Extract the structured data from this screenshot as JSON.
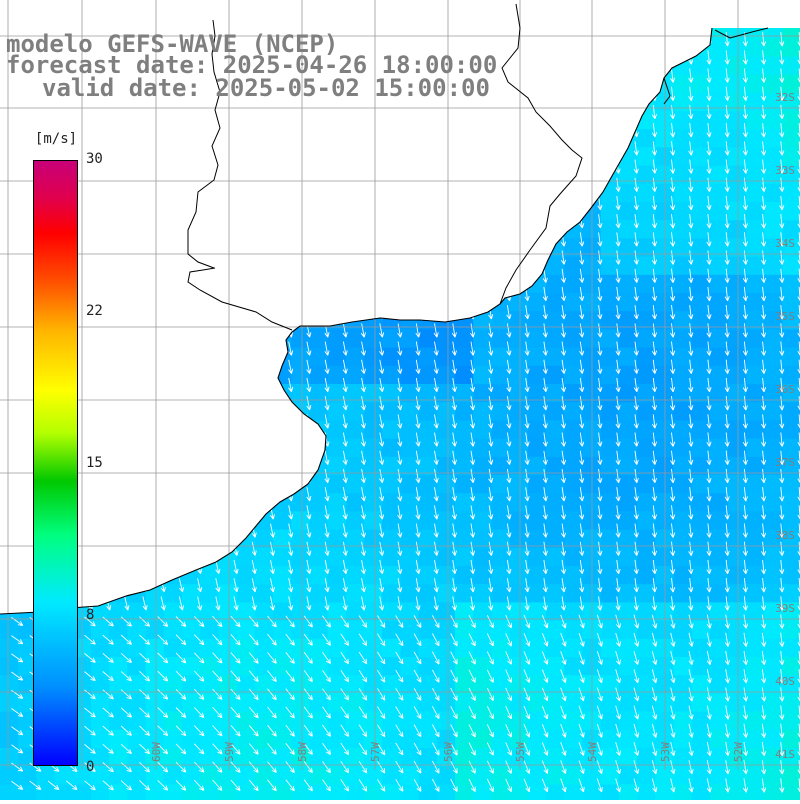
{
  "header": {
    "line1": "modelo GEFS-WAVE (NCEP)",
    "line2": "forecast date: 2025-04-26 18:00:00",
    "line3": "valid date: 2025-05-02 15:00:00"
  },
  "colorbar": {
    "unit": "[m/s]",
    "ticks": [
      "30",
      "22",
      "15",
      "8",
      "0"
    ],
    "colors": [
      "#0000ff",
      "#0090ff",
      "#00eaff",
      "#00ff80",
      "#00c800",
      "#b4ff00",
      "#ffff00",
      "#ffb400",
      "#ff5000",
      "#ff0000",
      "#e0004e",
      "#c80078"
    ]
  },
  "lat_labels": [
    "32S",
    "33S",
    "34S",
    "35S",
    "36S",
    "37S",
    "38S",
    "39S",
    "40S",
    "41S"
  ],
  "lon_labels": [
    "60W",
    "59W",
    "58W",
    "57W",
    "56W",
    "55W",
    "54W",
    "53W",
    "52W"
  ],
  "map_style": {
    "background": "#ffffff",
    "coastline": "#000000",
    "grid": "#9a9a9a",
    "arrow": "#ffffff",
    "axis_text": "#7f7f7f"
  },
  "wind_field": {
    "description_unit": "m/s",
    "predominant_direction": "from north-northwest to south-southeast",
    "speed_range": [
      4,
      9
    ],
    "strongest_region": "northeast near coast and southeast corner (aqua-green, ~8-9 m/s)",
    "weakest_region": "estuary / near coast west (blue, ~4-5 m/s)"
  }
}
